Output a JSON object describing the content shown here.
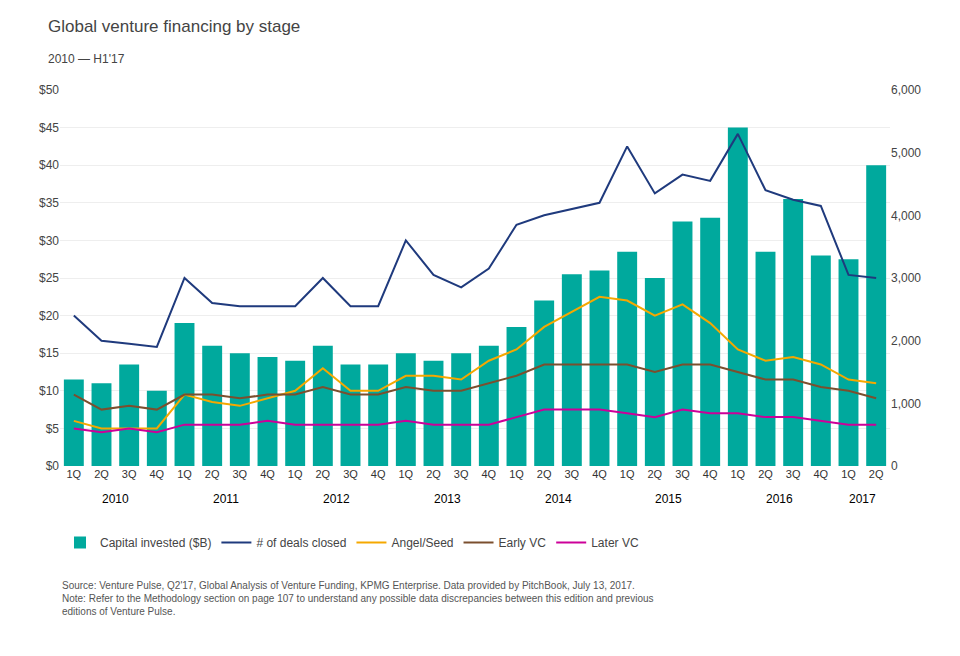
{
  "chart_data": {
    "type": "bar",
    "title": "Global venture financing by stage",
    "subtitle": "2010 — H1'17",
    "categories": [
      "1Q",
      "2Q",
      "3Q",
      "4Q",
      "1Q",
      "2Q",
      "3Q",
      "4Q",
      "1Q",
      "2Q",
      "3Q",
      "4Q",
      "1Q",
      "2Q",
      "3Q",
      "4Q",
      "1Q",
      "2Q",
      "3Q",
      "4Q",
      "1Q",
      "2Q",
      "3Q",
      "4Q",
      "1Q",
      "2Q",
      "3Q",
      "4Q",
      "1Q",
      "2Q"
    ],
    "series": [
      {
        "name": "Capital invested ($B)",
        "type": "bar",
        "color": "#00A99D",
        "values": [
          11.5,
          11.0,
          13.5,
          10.0,
          19.0,
          16.0,
          15.0,
          14.5,
          14.0,
          16.0,
          13.5,
          13.5,
          15.0,
          14.0,
          15.0,
          16.0,
          18.5,
          22.0,
          25.5,
          26.0,
          28.5,
          25.0,
          32.5,
          33.0,
          45.0,
          28.5,
          35.5,
          28.0,
          27.5,
          40.0
        ]
      },
      {
        "name": "# of deals closed",
        "type": "line",
        "axis": "y2",
        "color": "#1F3A7D",
        "values": [
          2400,
          2000,
          1950,
          1900,
          3000,
          2600,
          2550,
          2550,
          2550,
          3000,
          2550,
          2550,
          3600,
          3050,
          2850,
          3150,
          3850,
          4000,
          4100,
          4200,
          5100,
          4350,
          4650,
          4550,
          5300,
          4400,
          4250,
          4150,
          3050,
          3000
        ]
      },
      {
        "name": "Angel/Seed",
        "type": "line",
        "color": "#F5A800",
        "values": [
          6.0,
          5.0,
          5.0,
          5.0,
          9.5,
          8.5,
          8.0,
          9.0,
          10.0,
          13.0,
          10.0,
          10.0,
          12.0,
          12.0,
          11.5,
          14.0,
          15.5,
          18.5,
          20.5,
          22.5,
          22.0,
          20.0,
          21.5,
          19.0,
          15.5,
          14.0,
          14.5,
          13.5,
          11.5,
          11.0
        ]
      },
      {
        "name": "Early VC",
        "type": "line",
        "color": "#7B4F2E",
        "values": [
          9.5,
          7.5,
          8.0,
          7.5,
          9.5,
          9.5,
          9.0,
          9.5,
          9.5,
          10.5,
          9.5,
          9.5,
          10.5,
          10.0,
          10.0,
          11.0,
          12.0,
          13.5,
          13.5,
          13.5,
          13.5,
          12.5,
          13.5,
          13.5,
          12.5,
          11.5,
          11.5,
          10.5,
          10.0,
          9.0
        ]
      },
      {
        "name": "Later VC",
        "type": "line",
        "color": "#CC0099",
        "values": [
          5.0,
          4.5,
          5.0,
          4.5,
          5.5,
          5.5,
          5.5,
          6.0,
          5.5,
          5.5,
          5.5,
          5.5,
          6.0,
          5.5,
          5.5,
          5.5,
          6.5,
          7.5,
          7.5,
          7.5,
          7.0,
          6.5,
          7.5,
          7.0,
          7.0,
          6.5,
          6.5,
          6.0,
          5.5,
          5.5
        ]
      }
    ],
    "ylim": [
      0,
      50
    ],
    "yticks": [
      {
        "value": 0,
        "label": "$0"
      },
      {
        "value": 5,
        "label": "$5"
      },
      {
        "value": 10,
        "label": "$10"
      },
      {
        "value": 15,
        "label": "$15"
      },
      {
        "value": 20,
        "label": "$20"
      },
      {
        "value": 25,
        "label": "$25"
      },
      {
        "value": 30,
        "label": "$30"
      },
      {
        "value": 35,
        "label": "$35"
      },
      {
        "value": 40,
        "label": "$40"
      },
      {
        "value": 45,
        "label": "$45"
      },
      {
        "value": 50,
        "label": "$50"
      }
    ],
    "y2lim": [
      0,
      6000
    ],
    "y2ticks": [
      0,
      {
        "value": 1000,
        "label": "1,000"
      },
      {
        "value": 2000,
        "label": "2,000"
      },
      {
        "value": 3000,
        "label": "3,000"
      },
      {
        "value": 4000,
        "label": "4,000"
      },
      {
        "value": 5000,
        "label": "5,000"
      },
      {
        "value": 6000,
        "label": "6,000"
      }
    ],
    "annotations": [
      {
        "text": "2010",
        "x": 1.5
      },
      {
        "text": "2011",
        "x": 5.5
      },
      {
        "text": "2012",
        "x": 9.5
      },
      {
        "text": "2013",
        "x": 13.5
      },
      {
        "text": "2014",
        "x": 17.5
      },
      {
        "text": "2015",
        "x": 21.5
      },
      {
        "text": "2016",
        "x": 25.5
      },
      {
        "text": "2017",
        "x": 28.5
      }
    ],
    "source": "Source: Venture Pulse, Q2'17, Global Analysis of Venture Funding, KPMG Enterprise. Data provided by PitchBook, July 13, 2017.\nNote: Refer to the Methodology section on page 107 to understand any possible data discrepancies between this edition and previous\neditions of Venture Pulse.",
    "grid": true,
    "legend": "bottom"
  }
}
